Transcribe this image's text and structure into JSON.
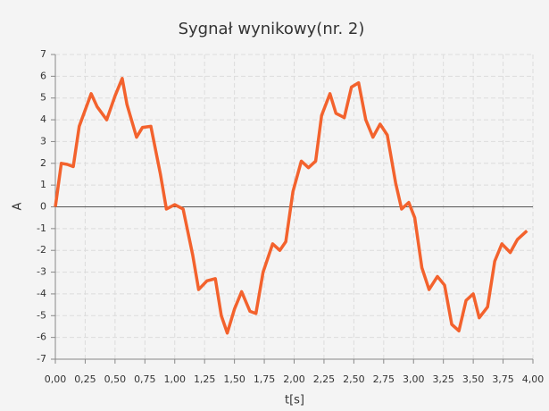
{
  "chart_data": {
    "type": "line",
    "title": "Sygnał wynikowy(nr. 2)",
    "x_label": "t[s]",
    "y_label": "A",
    "color": "#f3622d",
    "grid": true,
    "x": [
      0,
      0.05,
      0.1,
      0.15,
      0.2,
      0.3,
      0.35,
      0.43,
      0.5,
      0.56,
      0.6,
      0.68,
      0.73,
      0.8,
      0.88,
      0.93,
      1.0,
      1.07,
      1.15,
      1.2,
      1.27,
      1.34,
      1.39,
      1.44,
      1.5,
      1.56,
      1.63,
      1.68,
      1.74,
      1.82,
      1.88,
      1.93,
      1.99,
      2.06,
      2.12,
      2.18,
      2.23,
      2.3,
      2.35,
      2.42,
      2.48,
      2.54,
      2.6,
      2.66,
      2.72,
      2.78,
      2.85,
      2.9,
      2.96,
      3.01,
      3.07,
      3.13,
      3.2,
      3.26,
      3.32,
      3.38,
      3.44,
      3.5,
      3.55,
      3.62,
      3.68,
      3.74,
      3.81,
      3.87,
      3.95
    ],
    "values": [
      0,
      2.0,
      1.95,
      1.85,
      3.7,
      5.2,
      4.6,
      4.0,
      5.1,
      5.9,
      4.7,
      3.2,
      3.65,
      3.7,
      1.5,
      -0.1,
      0.1,
      -0.1,
      -2.2,
      -3.8,
      -3.4,
      -3.3,
      -5.0,
      -5.8,
      -4.7,
      -3.9,
      -4.8,
      -4.9,
      -3.0,
      -1.7,
      -2.0,
      -1.6,
      0.7,
      2.1,
      1.8,
      2.1,
      4.2,
      5.2,
      4.3,
      4.1,
      5.5,
      5.7,
      4.0,
      3.2,
      3.8,
      3.3,
      1.1,
      -0.1,
      0.2,
      -0.5,
      -2.8,
      -3.8,
      -3.2,
      -3.6,
      -5.4,
      -5.7,
      -4.3,
      -4.0,
      -5.1,
      -4.6,
      -2.5,
      -1.7,
      -2.1,
      -1.5,
      -1.1
    ],
    "xlim": [
      0,
      4
    ],
    "ylim": [
      -7,
      7
    ],
    "xticks": [
      {
        "value": 0,
        "label": "0,00"
      },
      {
        "value": 0.25,
        "label": "0,25"
      },
      {
        "value": 0.5,
        "label": "0,50"
      },
      {
        "value": 0.75,
        "label": "0,75"
      },
      {
        "value": 1,
        "label": "1,00"
      },
      {
        "value": 1.25,
        "label": "1,25"
      },
      {
        "value": 1.5,
        "label": "1,50"
      },
      {
        "value": 1.75,
        "label": "1,75"
      },
      {
        "value": 2,
        "label": "2,00"
      },
      {
        "value": 2.25,
        "label": "2,25"
      },
      {
        "value": 2.5,
        "label": "2,50"
      },
      {
        "value": 2.75,
        "label": "2,75"
      },
      {
        "value": 3,
        "label": "3,00"
      },
      {
        "value": 3.25,
        "label": "3,25"
      },
      {
        "value": 3.5,
        "label": "3,50"
      },
      {
        "value": 3.75,
        "label": "3,75"
      },
      {
        "value": 4,
        "label": "4,00"
      }
    ],
    "yticks": [
      -7,
      -6,
      -5,
      -4,
      -3,
      -2,
      -1,
      0,
      1,
      2,
      3,
      4,
      5,
      6,
      7
    ]
  }
}
